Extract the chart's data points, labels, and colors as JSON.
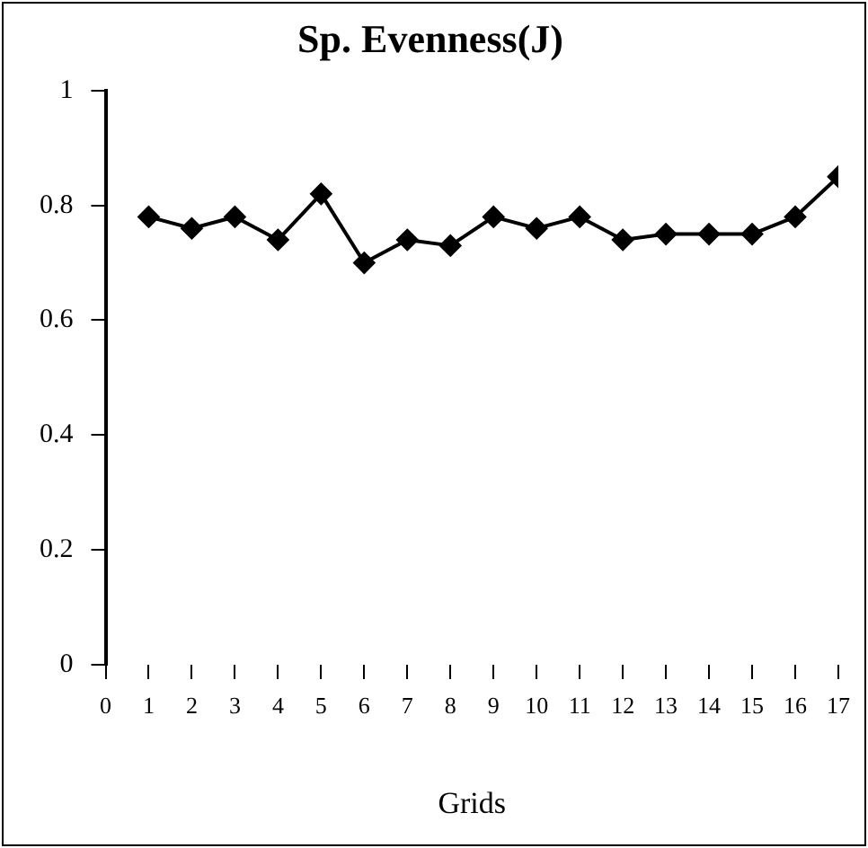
{
  "chart_data": {
    "type": "line",
    "title": "Sp. Evenness(J)",
    "xlabel": "Grids",
    "x": [
      1,
      2,
      3,
      4,
      5,
      6,
      7,
      8,
      9,
      10,
      11,
      12,
      13,
      14,
      15,
      16,
      17
    ],
    "series": [
      {
        "color": "#000000",
        "values": [
          0.78,
          0.76,
          0.78,
          0.74,
          0.82,
          0.7,
          0.74,
          0.73,
          0.78,
          0.76,
          0.78,
          0.74,
          0.75,
          0.75,
          0.75,
          0.78,
          0.85
        ]
      }
    ],
    "xlim": [
      0,
      17
    ],
    "xticks": [
      0,
      1,
      2,
      3,
      4,
      5,
      6,
      7,
      8,
      9,
      10,
      11,
      12,
      13,
      14,
      15,
      16,
      17
    ],
    "ylim": [
      0,
      1
    ],
    "yticks": [
      0,
      0.2,
      0.4,
      0.6,
      0.8,
      1
    ],
    "grid": false,
    "legend": false,
    "marker": "diamond",
    "line_style": "solid"
  }
}
